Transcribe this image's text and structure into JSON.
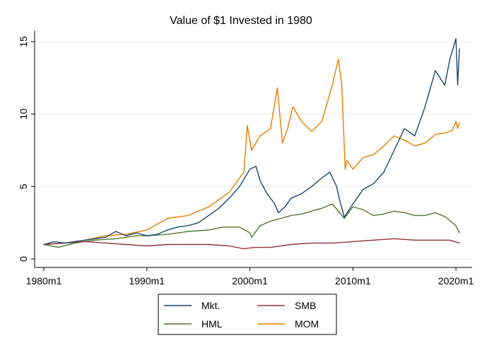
{
  "chart_data": {
    "type": "line",
    "title": "Value of $1 Invested in 1980",
    "xlabel": "",
    "ylabel": "",
    "x_range": [
      "1980m1",
      "2020m5"
    ],
    "ylim": [
      0,
      15
    ],
    "x_ticks": [
      "1980m1",
      "1990m1",
      "2000m1",
      "2010m1",
      "2020m1"
    ],
    "y_ticks": [
      "0",
      "5",
      "10",
      "15"
    ],
    "grid": true,
    "legend": {
      "placement": "bottom",
      "columns": 2
    },
    "series": [
      {
        "name": "Mkt.",
        "color": "#1a476f",
        "points": [
          [
            "1980m1",
            1.0
          ],
          [
            "1981m1",
            1.2
          ],
          [
            "1982m1",
            1.1
          ],
          [
            "1983m1",
            1.2
          ],
          [
            "1984m1",
            1.3
          ],
          [
            "1985m1",
            1.4
          ],
          [
            "1986m1",
            1.5
          ],
          [
            "1987m1",
            1.9
          ],
          [
            "1988m1",
            1.6
          ],
          [
            "1989m1",
            1.8
          ],
          [
            "1990m1",
            1.6
          ],
          [
            "1991m1",
            1.7
          ],
          [
            "1992m1",
            2.0
          ],
          [
            "1993m1",
            2.2
          ],
          [
            "1994m1",
            2.3
          ],
          [
            "1995m1",
            2.5
          ],
          [
            "1996m1",
            3.0
          ],
          [
            "1997m1",
            3.5
          ],
          [
            "1998m1",
            4.2
          ],
          [
            "1999m1",
            5.0
          ],
          [
            "2000m1",
            6.2
          ],
          [
            "2000m8",
            6.4
          ],
          [
            "2001m1",
            5.4
          ],
          [
            "2001m9",
            4.5
          ],
          [
            "2002m6",
            3.8
          ],
          [
            "2002m10",
            3.2
          ],
          [
            "2003m6",
            3.6
          ],
          [
            "2004m1",
            4.2
          ],
          [
            "2005m1",
            4.5
          ],
          [
            "2006m1",
            5.0
          ],
          [
            "2007m1",
            5.6
          ],
          [
            "2007m10",
            6.0
          ],
          [
            "2008m6",
            5.0
          ],
          [
            "2008m9",
            4.2
          ],
          [
            "2009m3",
            2.9
          ],
          [
            "2010m1",
            3.8
          ],
          [
            "2011m1",
            4.8
          ],
          [
            "2012m1",
            5.2
          ],
          [
            "2013m1",
            6.0
          ],
          [
            "2014m1",
            7.5
          ],
          [
            "2015m1",
            9.0
          ],
          [
            "2016m1",
            8.5
          ],
          [
            "2017m1",
            10.5
          ],
          [
            "2018m1",
            13.0
          ],
          [
            "2018m12",
            12.0
          ],
          [
            "2019m6",
            13.8
          ],
          [
            "2020m1",
            15.2
          ],
          [
            "2020m3",
            12.0
          ],
          [
            "2020m5",
            14.5
          ]
        ]
      },
      {
        "name": "SMB",
        "color": "#90353b",
        "points": [
          [
            "1980m1",
            1.0
          ],
          [
            "1982m1",
            1.1
          ],
          [
            "1984m1",
            1.2
          ],
          [
            "1986m1",
            1.1
          ],
          [
            "1988m1",
            1.0
          ],
          [
            "1990m1",
            0.9
          ],
          [
            "1992m1",
            1.0
          ],
          [
            "1994m1",
            1.0
          ],
          [
            "1996m1",
            1.0
          ],
          [
            "1998m1",
            0.9
          ],
          [
            "1999m6",
            0.7
          ],
          [
            "2000m6",
            0.8
          ],
          [
            "2002m1",
            0.8
          ],
          [
            "2004m1",
            1.0
          ],
          [
            "2006m1",
            1.1
          ],
          [
            "2008m1",
            1.1
          ],
          [
            "2010m1",
            1.2
          ],
          [
            "2012m1",
            1.3
          ],
          [
            "2014m1",
            1.4
          ],
          [
            "2016m1",
            1.3
          ],
          [
            "2018m1",
            1.3
          ],
          [
            "2019m6",
            1.3
          ],
          [
            "2020m5",
            1.1
          ]
        ]
      },
      {
        "name": "HML",
        "color": "#55752f",
        "points": [
          [
            "1980m1",
            1.0
          ],
          [
            "1981m6",
            0.8
          ],
          [
            "1983m1",
            1.1
          ],
          [
            "1985m1",
            1.3
          ],
          [
            "1987m1",
            1.4
          ],
          [
            "1989m1",
            1.6
          ],
          [
            "1990m1",
            1.6
          ],
          [
            "1992m1",
            1.7
          ],
          [
            "1994m1",
            1.9
          ],
          [
            "1996m1",
            2.0
          ],
          [
            "1997m6",
            2.2
          ],
          [
            "1999m1",
            2.2
          ],
          [
            "2000m1",
            1.8
          ],
          [
            "2000m3",
            1.5
          ],
          [
            "2001m1",
            2.3
          ],
          [
            "2002m1",
            2.6
          ],
          [
            "2003m1",
            2.8
          ],
          [
            "2004m1",
            3.0
          ],
          [
            "2005m1",
            3.1
          ],
          [
            "2006m1",
            3.3
          ],
          [
            "2007m1",
            3.5
          ],
          [
            "2008m1",
            3.8
          ],
          [
            "2009m3",
            2.8
          ],
          [
            "2010m1",
            3.6
          ],
          [
            "2011m1",
            3.4
          ],
          [
            "2012m1",
            3.0
          ],
          [
            "2013m1",
            3.1
          ],
          [
            "2014m1",
            3.3
          ],
          [
            "2015m1",
            3.2
          ],
          [
            "2016m1",
            3.0
          ],
          [
            "2017m1",
            3.0
          ],
          [
            "2018m1",
            3.2
          ],
          [
            "2019m1",
            2.9
          ],
          [
            "2020m1",
            2.3
          ],
          [
            "2020m5",
            1.8
          ]
        ]
      },
      {
        "name": "MOM",
        "color": "#e37e00",
        "points": [
          [
            "1980m1",
            1.0
          ],
          [
            "1982m1",
            1.1
          ],
          [
            "1984m1",
            1.3
          ],
          [
            "1986m1",
            1.6
          ],
          [
            "1988m1",
            1.7
          ],
          [
            "1990m1",
            2.0
          ],
          [
            "1992m1",
            2.8
          ],
          [
            "1994m1",
            3.0
          ],
          [
            "1996m1",
            3.6
          ],
          [
            "1998m1",
            4.6
          ],
          [
            "1999m6",
            6.0
          ],
          [
            "1999m10",
            9.2
          ],
          [
            "2000m3",
            7.5
          ],
          [
            "2001m1",
            8.5
          ],
          [
            "2002m1",
            9.0
          ],
          [
            "2002m9",
            11.8
          ],
          [
            "2003m3",
            8.0
          ],
          [
            "2003m9",
            9.0
          ],
          [
            "2004m3",
            10.5
          ],
          [
            "2005m1",
            9.5
          ],
          [
            "2006m1",
            8.8
          ],
          [
            "2007m1",
            9.5
          ],
          [
            "2008m1",
            12.0
          ],
          [
            "2008m8",
            13.8
          ],
          [
            "2008m12",
            12.0
          ],
          [
            "2009m4",
            6.2
          ],
          [
            "2009m6",
            6.8
          ],
          [
            "2010m1",
            6.2
          ],
          [
            "2011m1",
            7.0
          ],
          [
            "2012m1",
            7.2
          ],
          [
            "2013m1",
            7.8
          ],
          [
            "2014m1",
            8.5
          ],
          [
            "2015m1",
            8.2
          ],
          [
            "2016m1",
            7.8
          ],
          [
            "2017m1",
            8.0
          ],
          [
            "2018m1",
            8.6
          ],
          [
            "2019m1",
            8.7
          ],
          [
            "2019m9",
            8.9
          ],
          [
            "2020m1",
            9.5
          ],
          [
            "2020m3",
            9.0
          ],
          [
            "2020m5",
            9.4
          ]
        ]
      }
    ]
  }
}
